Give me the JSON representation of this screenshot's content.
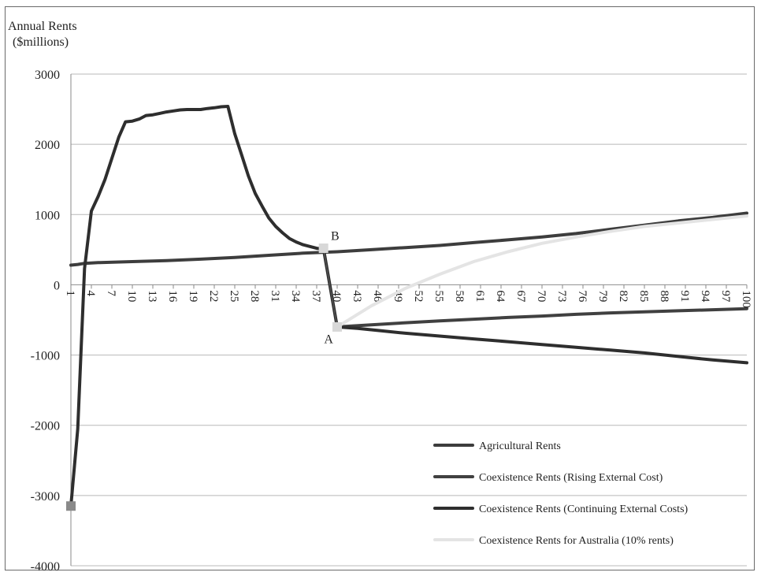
{
  "chart_data": {
    "type": "line",
    "ylabel_line1": "Annual Rents",
    "ylabel_line2": "($millions)",
    "ylim": [
      -4000,
      3000
    ],
    "yticks": [
      3000,
      2000,
      1000,
      0,
      -1000,
      -2000,
      -3000,
      -4000
    ],
    "xlim": [
      1,
      100
    ],
    "xticks": [
      1,
      4,
      7,
      10,
      13,
      16,
      19,
      22,
      25,
      28,
      31,
      34,
      37,
      40,
      43,
      46,
      49,
      52,
      55,
      58,
      61,
      64,
      67,
      70,
      73,
      76,
      79,
      82,
      85,
      88,
      91,
      94,
      97,
      100
    ],
    "xtick_labels": [
      "1",
      "4",
      "7",
      "10",
      "13",
      "16",
      "19",
      "22",
      "25",
      "28",
      "31",
      "34",
      "37",
      "40",
      "43",
      "46",
      "49",
      "52",
      "55",
      "58",
      "61",
      "64",
      "67",
      "70",
      "73",
      "76",
      "79",
      "82",
      "85",
      "88",
      "91",
      "94",
      "97",
      "100"
    ],
    "grid": true,
    "legend_position": "bottom-right",
    "series": [
      {
        "name": "Agricultural Rents",
        "color": "#3d3d3d",
        "points": [
          [
            1,
            280
          ],
          [
            2,
            290
          ],
          [
            3,
            305
          ],
          [
            5,
            315
          ],
          [
            10,
            330
          ],
          [
            15,
            345
          ],
          [
            20,
            365
          ],
          [
            25,
            390
          ],
          [
            30,
            420
          ],
          [
            35,
            450
          ],
          [
            40,
            470
          ],
          [
            45,
            500
          ],
          [
            50,
            530
          ],
          [
            55,
            560
          ],
          [
            60,
            600
          ],
          [
            65,
            640
          ],
          [
            70,
            680
          ],
          [
            75,
            730
          ],
          [
            80,
            790
          ],
          [
            85,
            850
          ],
          [
            90,
            910
          ],
          [
            95,
            960
          ],
          [
            100,
            1020
          ]
        ]
      },
      {
        "name": "Coexistence Rents (Rising External Cost)",
        "color": "#404040",
        "points": [
          [
            40,
            -600
          ],
          [
            45,
            -570
          ],
          [
            50,
            -540
          ],
          [
            55,
            -515
          ],
          [
            60,
            -490
          ],
          [
            65,
            -465
          ],
          [
            70,
            -445
          ],
          [
            75,
            -420
          ],
          [
            80,
            -400
          ],
          [
            85,
            -385
          ],
          [
            90,
            -370
          ],
          [
            95,
            -355
          ],
          [
            100,
            -340
          ]
        ]
      },
      {
        "name": "Coexistence Rents (Continuing External Costs)",
        "color": "#2e2e2e",
        "points": [
          [
            1,
            -3150
          ],
          [
            2,
            -2050
          ],
          [
            3,
            230
          ],
          [
            4,
            1050
          ],
          [
            5,
            1260
          ],
          [
            6,
            1500
          ],
          [
            7,
            1800
          ],
          [
            8,
            2100
          ],
          [
            9,
            2320
          ],
          [
            10,
            2330
          ],
          [
            11,
            2360
          ],
          [
            12,
            2410
          ],
          [
            13,
            2420
          ],
          [
            14,
            2440
          ],
          [
            15,
            2460
          ],
          [
            16,
            2475
          ],
          [
            17,
            2490
          ],
          [
            18,
            2495
          ],
          [
            19,
            2495
          ],
          [
            20,
            2495
          ],
          [
            21,
            2510
          ],
          [
            22,
            2520
          ],
          [
            23,
            2535
          ],
          [
            24,
            2540
          ],
          [
            25,
            2150
          ],
          [
            26,
            1850
          ],
          [
            27,
            1550
          ],
          [
            28,
            1300
          ],
          [
            29,
            1120
          ],
          [
            30,
            950
          ],
          [
            31,
            830
          ],
          [
            32,
            740
          ],
          [
            33,
            660
          ],
          [
            34,
            610
          ],
          [
            35,
            570
          ],
          [
            36,
            545
          ],
          [
            37,
            520
          ],
          [
            38,
            510
          ],
          [
            40,
            -600
          ],
          [
            43,
            -620
          ],
          [
            46,
            -650
          ],
          [
            50,
            -690
          ],
          [
            55,
            -730
          ],
          [
            60,
            -770
          ],
          [
            65,
            -810
          ],
          [
            70,
            -850
          ],
          [
            75,
            -890
          ],
          [
            80,
            -930
          ],
          [
            85,
            -970
          ],
          [
            90,
            -1020
          ],
          [
            95,
            -1070
          ],
          [
            100,
            -1110
          ]
        ]
      },
      {
        "name": "Coexistence Rents for Australia (10% rents)",
        "color": "#e4e4e4",
        "points": [
          [
            40,
            -600
          ],
          [
            45,
            -300
          ],
          [
            50,
            -50
          ],
          [
            55,
            150
          ],
          [
            60,
            330
          ],
          [
            65,
            470
          ],
          [
            70,
            590
          ],
          [
            75,
            680
          ],
          [
            80,
            760
          ],
          [
            85,
            830
          ],
          [
            90,
            880
          ],
          [
            95,
            930
          ],
          [
            100,
            980
          ]
        ]
      }
    ],
    "annotations": [
      {
        "label": "A",
        "x": 39,
        "y": -830
      },
      {
        "label": "B",
        "x": 40,
        "y": 640
      }
    ]
  }
}
